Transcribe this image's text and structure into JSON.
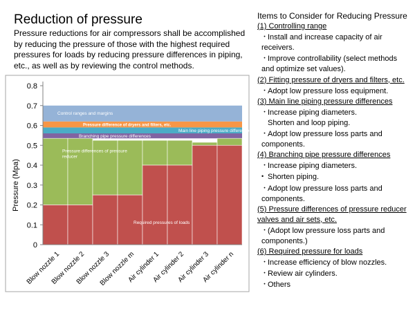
{
  "title": "Reduction of pressure",
  "intro": "Pressure reductions for air compressors shall be accomplished by reducing the pressure of those with the highest required pressures for loads by reducing pressure differences in piping, etc., as well as by reviewing the control methods.",
  "considerations": {
    "heading": "Items to Consider for Reducing Pressure",
    "sections": [
      {
        "title": "(1) Controlling range",
        "items": [
          {
            "bullet": "・",
            "text": "Install and increase capacity of air receivers."
          },
          {
            "bullet": "・",
            "text": "Improve controllability (select methods and optimize set values)."
          }
        ]
      },
      {
        "title": "(2) Fitting pressure of dryers and filters, etc.",
        "items": [
          {
            "bullet": "・",
            "text": "Adopt low pressure loss equipment."
          }
        ]
      },
      {
        "title": "(3) Main line piping pressure differences",
        "items": [
          {
            "bullet": "・",
            "text": "Increase piping diameters."
          },
          {
            "bullet": "",
            "text": "Shorten and loop piping."
          },
          {
            "bullet": "・",
            "text": "Adopt low pressure loss parts and components."
          }
        ]
      },
      {
        "title": "(4)  Branching pipe pressure differences",
        "items": [
          {
            "bullet": "・",
            "text": "Increase piping diameters."
          },
          {
            "bullet": "•",
            "text": "Shorten piping."
          },
          {
            "bullet": "・",
            "text": "Adopt low pressure loss parts and components."
          }
        ]
      },
      {
        "title": "(5) Pressure differences of pressure reducer valves and air sets, etc.",
        "items": [
          {
            "bullet": "・",
            "text": "(Adopt low pressure loss parts and components.)"
          }
        ]
      },
      {
        "title": "(6) Required pressure for loads",
        "items": [
          {
            "bullet": "・",
            "text": "Increase efficiency of blow nozzles."
          },
          {
            "bullet": "・",
            "text": "Review air cylinders."
          },
          {
            "bullet": "・",
            "text": "Others"
          }
        ]
      }
    ]
  },
  "chart_data": {
    "type": "bar",
    "stacked": true,
    "ylabel": "Pressure (Mpa)",
    "ylim": [
      0,
      0.8
    ],
    "yticks": [
      0,
      0.1,
      0.2,
      0.3,
      0.4,
      0.5,
      0.6,
      0.7,
      0.8
    ],
    "categories": [
      "Blow nozzle 1",
      "Blow nozzle 2",
      "Blow nozzle 3",
      "Blow nozzle m",
      "Air cylinder 1",
      "Air cylinder 2",
      "Air cylinder 3",
      "Air cylinder n"
    ],
    "load_pressures": [
      0.2,
      0.2,
      0.25,
      0.25,
      0.4,
      0.4,
      0.5,
      0.5
    ],
    "load_color": "#c0504d",
    "reducer_tops": [
      0.535,
      0.535,
      0.525,
      0.525,
      0.525,
      0.525,
      0.515,
      0.535
    ],
    "reducer_color": "#9bbb59",
    "bands": [
      {
        "name": "Branching pipe pressure differences",
        "from": 0.535,
        "to": 0.56,
        "color": "#8064a2"
      },
      {
        "name": "Main line piping pressure differences",
        "from": 0.56,
        "to": 0.59,
        "color": "#4bacc6"
      },
      {
        "name": "Pressure difference of dryers and filters, etc.",
        "from": 0.59,
        "to": 0.62,
        "color": "#f79646"
      },
      {
        "name": "Control ranges and margins",
        "from": 0.62,
        "to": 0.7,
        "color": "#95b3d7"
      }
    ],
    "annotations": {
      "control": "Control ranges and margins",
      "dryers": "Pressure difference of dryers and filters, etc.",
      "mainline": "Main line piping pressure differences",
      "branching": "Branching pipe pressure differences",
      "reducer": "Pressure differences of pressure reducer",
      "loads": "Required pressures of loads"
    },
    "grid": false,
    "legend": "none"
  }
}
